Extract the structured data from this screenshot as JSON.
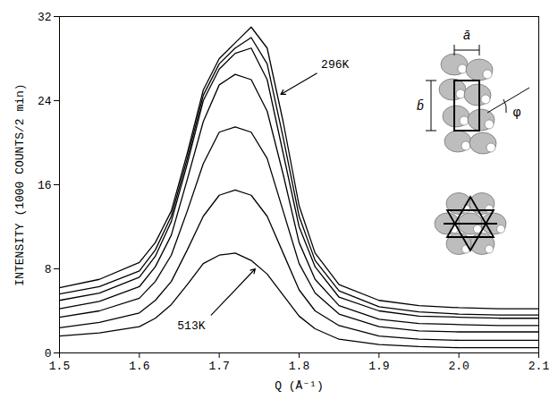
{
  "chart_data": {
    "type": "line",
    "xlabel": "Q (Å⁻¹)",
    "ylabel": "INTENSITY (1000 COUNTS/2 min)",
    "x": [
      1.5,
      1.55,
      1.6,
      1.62,
      1.64,
      1.66,
      1.68,
      1.7,
      1.72,
      1.74,
      1.76,
      1.78,
      1.8,
      1.82,
      1.85,
      1.9,
      1.95,
      2.0,
      2.05,
      2.1
    ],
    "series": [
      {
        "color": "#000000",
        "values": [
          6.2,
          7.0,
          8.6,
          10.5,
          13.5,
          19,
          25,
          28,
          29.5,
          31,
          29,
          22,
          14,
          9.5,
          6.5,
          5.0,
          4.5,
          4.3,
          4.2,
          4.2
        ]
      },
      {
        "color": "#000000",
        "values": [
          5.6,
          6.3,
          7.8,
          9.8,
          13,
          18.5,
          24.5,
          27.5,
          29,
          30,
          27.5,
          20.5,
          13,
          8.8,
          5.9,
          4.4,
          3.9,
          3.7,
          3.6,
          3.6
        ]
      },
      {
        "color": "#000000",
        "values": [
          5.0,
          5.7,
          7.2,
          9.2,
          12.5,
          18,
          24,
          27,
          28.5,
          29,
          26,
          19,
          12,
          8.2,
          5.3,
          4.0,
          3.5,
          3.4,
          3.3,
          3.3
        ]
      },
      {
        "color": "#000000",
        "values": [
          4.2,
          4.9,
          6.3,
          8.2,
          11.2,
          16.5,
          22,
          25.5,
          26.5,
          26,
          23,
          17,
          10.5,
          7,
          4.5,
          3.2,
          2.8,
          2.7,
          2.6,
          2.6
        ]
      },
      {
        "color": "#000000",
        "values": [
          3.4,
          4.0,
          5.2,
          6.8,
          9.3,
          13.5,
          18,
          21,
          21.5,
          21,
          18.5,
          13.5,
          8.5,
          5.7,
          3.7,
          2.5,
          2.1,
          2.0,
          2.0,
          2.0
        ]
      },
      {
        "color": "#000000",
        "values": [
          2.4,
          2.9,
          3.8,
          5.0,
          6.8,
          9.8,
          13,
          15,
          15.5,
          15,
          13,
          9.5,
          6,
          4,
          2.6,
          1.6,
          1.3,
          1.2,
          1.2,
          1.2
        ]
      },
      {
        "color": "#000000",
        "values": [
          1.6,
          1.9,
          2.5,
          3.3,
          4.6,
          6.5,
          8.5,
          9.3,
          9.5,
          8.8,
          7.5,
          5.5,
          3.5,
          2.3,
          1.3,
          0.8,
          0.6,
          0.5,
          0.5,
          0.5
        ]
      }
    ],
    "xlim": [
      1.5,
      2.1
    ],
    "ylim": [
      0,
      32
    ],
    "xticks": [
      1.5,
      1.6,
      1.7,
      1.8,
      1.9,
      {
        "value": 2,
        "label": "2.0"
      },
      2.1
    ],
    "yticks": [
      0,
      8,
      16,
      24,
      32
    ],
    "grid": false,
    "annotations": [
      {
        "text": "296K",
        "x": 1.845,
        "y": 27.5,
        "arrow": [
          1.822,
          26.6,
          1.777,
          24.6
        ]
      },
      {
        "text": "513K",
        "x": 1.665,
        "y": 2.6,
        "arrow": [
          1.69,
          3.6,
          1.745,
          8.0
        ]
      }
    ],
    "inset": {
      "a_label": "ā",
      "b_label": "b̄",
      "phi_label": "φ"
    }
  }
}
